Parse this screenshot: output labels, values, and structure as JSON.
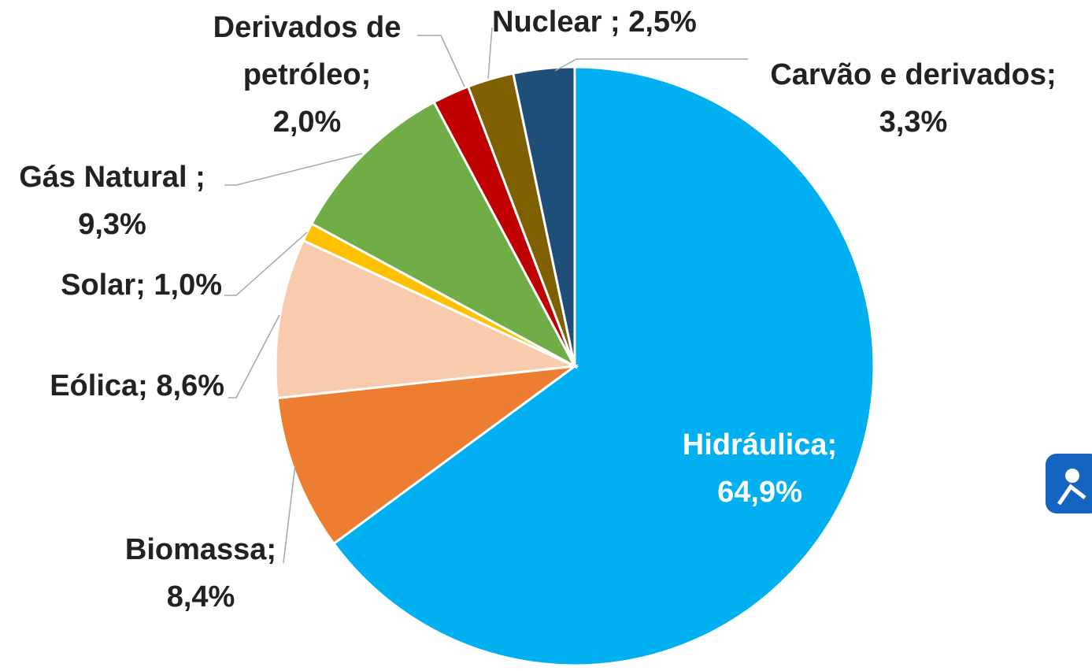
{
  "chart_data": {
    "type": "pie",
    "categories": [
      "Hidráulica;",
      "Biomassa;",
      "Eólica;",
      "Solar;",
      "Gás Natural ;",
      "Derivados de petróleo;",
      "Nuclear ;",
      "Carvão e derivados;"
    ],
    "values": [
      64.9,
      8.4,
      8.6,
      1.0,
      9.3,
      2.0,
      2.5,
      3.3
    ],
    "value_labels": [
      "64,9%",
      "8,4%",
      "8,6%",
      "1,0%",
      "9,3%",
      "2,0%",
      "2,5%",
      "3,3%"
    ],
    "colors": [
      "#00b0f0",
      "#ed7d31",
      "#f8cbad",
      "#ffc000",
      "#70ad47",
      "#c00000",
      "#7f6000",
      "#1f4e79"
    ]
  }
}
